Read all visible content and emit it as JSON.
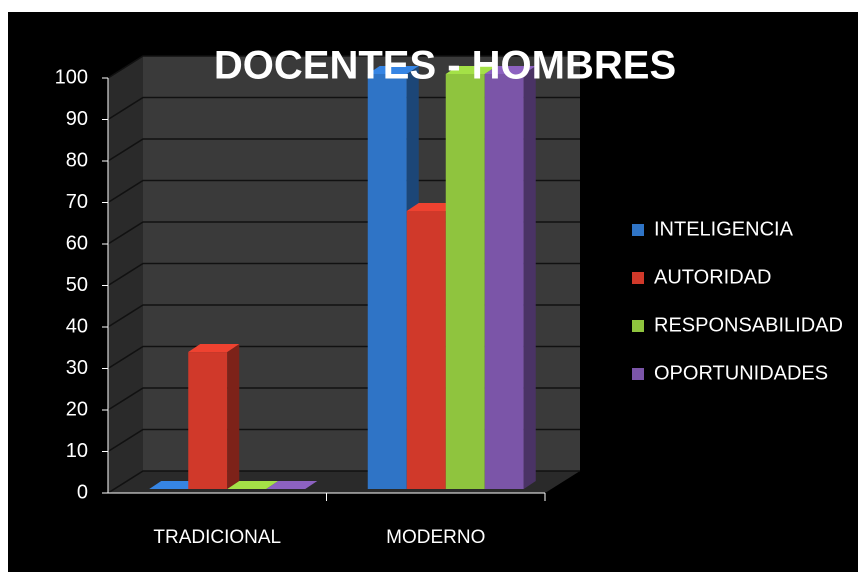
{
  "chart_data": {
    "type": "bar3d",
    "title": "DOCENTES - HOMBRES",
    "categories": [
      "TRADICIONAL",
      "MODERNO"
    ],
    "series": [
      {
        "name": "INTELIGENCIA",
        "color": "#2f74c6",
        "values": [
          0,
          100
        ]
      },
      {
        "name": "AUTORIDAD",
        "color": "#d0392a",
        "values": [
          33,
          67
        ]
      },
      {
        "name": "RESPONSABILIDAD",
        "color": "#8fc43e",
        "values": [
          0,
          100
        ]
      },
      {
        "name": "OPORTUNIDADES",
        "color": "#7b55a8",
        "values": [
          0,
          100
        ]
      }
    ],
    "ylim": [
      0,
      100
    ],
    "yticks": [
      0,
      10,
      20,
      30,
      40,
      50,
      60,
      70,
      80,
      90,
      100
    ],
    "grid": true,
    "legend": "right"
  }
}
